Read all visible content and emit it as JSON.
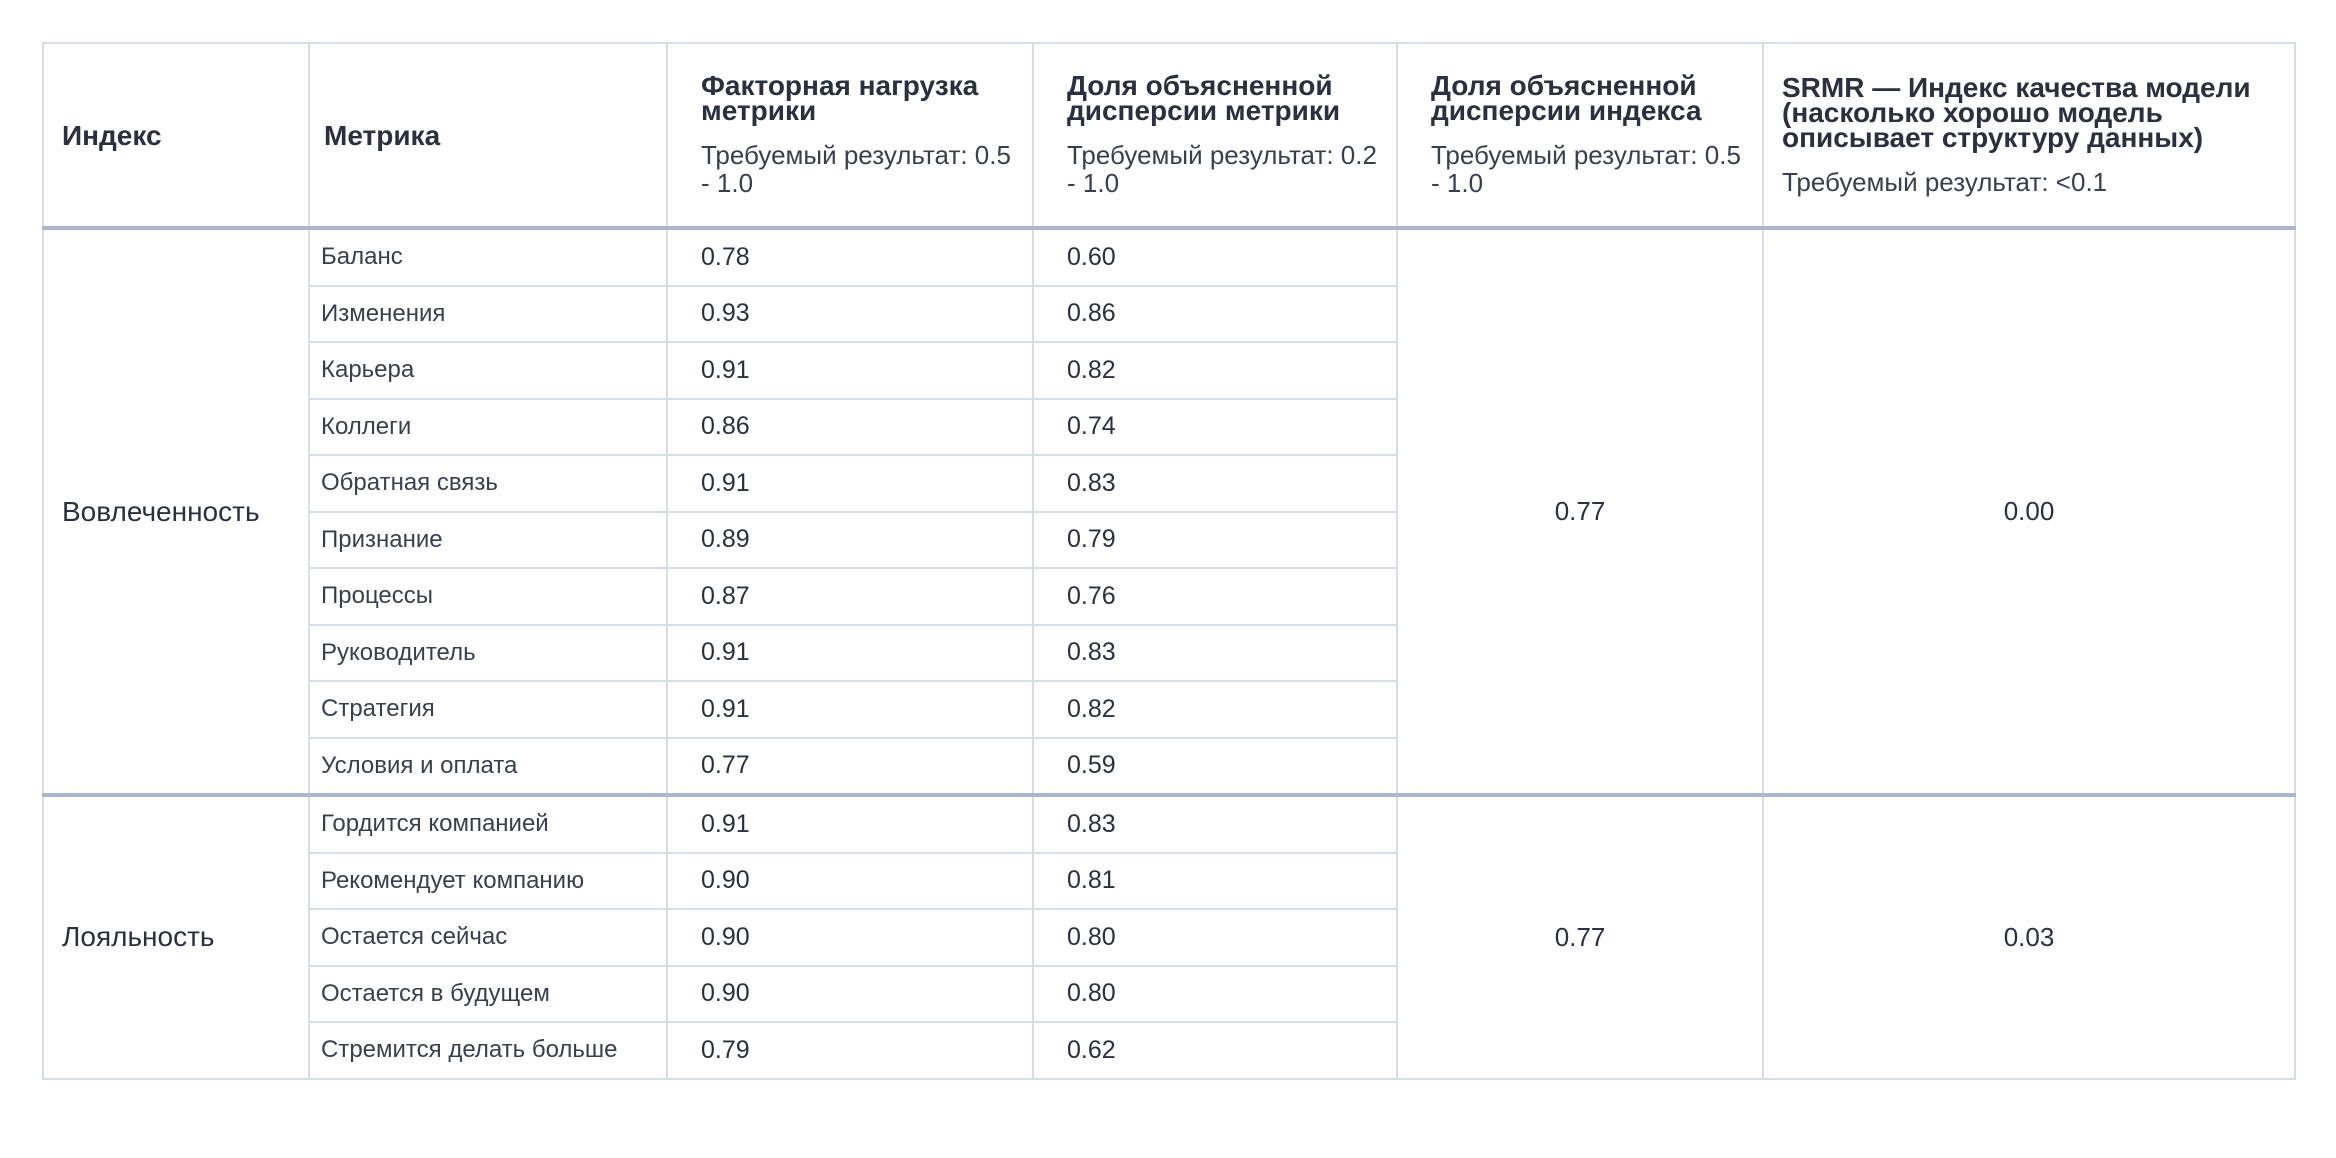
{
  "headers": {
    "index": "Индекс",
    "metric": "Метрика",
    "loading": {
      "title": "Факторная нагрузка метрики",
      "req": "Требуемый результат: 0.5 - 1.0"
    },
    "metric_var": {
      "title": "Доля объясненной дисперсии метрики",
      "req": "Требуемый результат: 0.2 - 1.0"
    },
    "index_var": {
      "title": "Доля объясненной дисперсии индекса",
      "req": "Требуемый результат: 0.5 - 1.0"
    },
    "srmr": {
      "title": "SRMR — Индекс качества модели (насколько хорошо модель описывает структуру данных)",
      "req": "Требуемый результат: <0.1"
    }
  },
  "groups": [
    {
      "index": "Вовлеченность",
      "index_var": "0.77",
      "srmr": "0.00",
      "rows": [
        {
          "metric": "Баланс",
          "loading": "0.78",
          "var": "0.60"
        },
        {
          "metric": "Изменения",
          "loading": "0.93",
          "var": "0.86"
        },
        {
          "metric": "Карьера",
          "loading": "0.91",
          "var": "0.82"
        },
        {
          "metric": "Коллеги",
          "loading": "0.86",
          "var": "0.74"
        },
        {
          "metric": "Обратная связь",
          "loading": "0.91",
          "var": "0.83"
        },
        {
          "metric": "Признание",
          "loading": "0.89",
          "var": "0.79"
        },
        {
          "metric": "Процессы",
          "loading": "0.87",
          "var": "0.76"
        },
        {
          "metric": "Руководитель",
          "loading": "0.91",
          "var": "0.83"
        },
        {
          "metric": "Стратегия",
          "loading": "0.91",
          "var": "0.82"
        },
        {
          "metric": "Условия и оплата",
          "loading": "0.77",
          "var": "0.59"
        }
      ]
    },
    {
      "index": "Лояльность",
      "index_var": "0.77",
      "srmr": "0.03",
      "rows": [
        {
          "metric": "Гордится компанией",
          "loading": "0.91",
          "var": "0.83"
        },
        {
          "metric": "Рекомендует компанию",
          "loading": "0.90",
          "var": "0.81"
        },
        {
          "metric": "Остается сейчас",
          "loading": "0.90",
          "var": "0.80"
        },
        {
          "metric": "Остается в будущем",
          "loading": "0.90",
          "var": "0.80"
        },
        {
          "metric": "Стремится делать больше",
          "loading": "0.79",
          "var": "0.62"
        }
      ]
    }
  ]
}
